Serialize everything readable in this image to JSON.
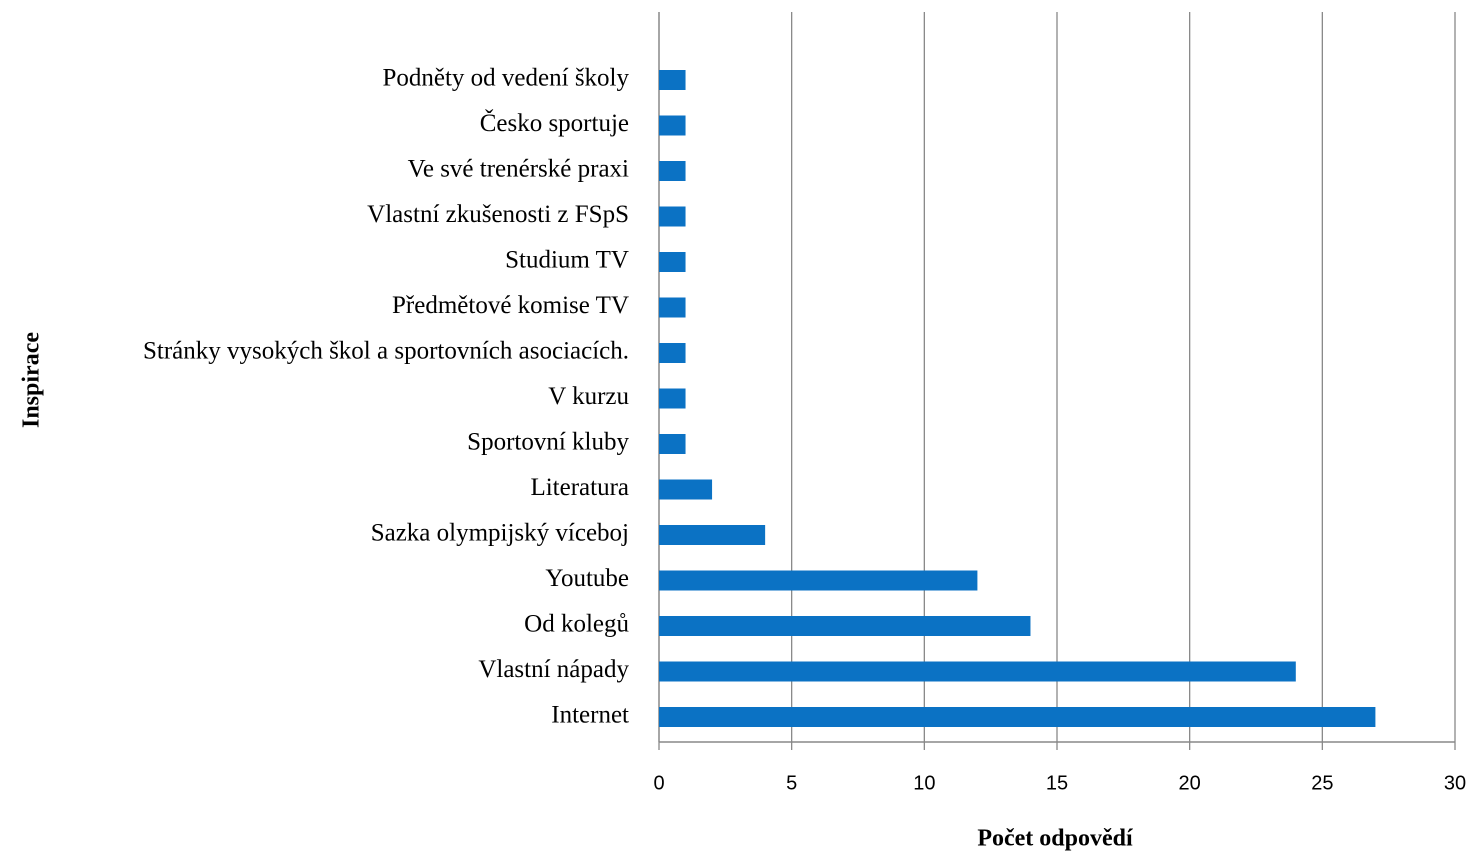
{
  "chart_data": {
    "type": "hbar",
    "categories": [
      "Podněty od vedení školy",
      "Česko sportuje",
      "Ve své trenérské praxi",
      "Vlastní zkušenosti z FSpS",
      "Studium TV",
      "Předmětové komise TV",
      "Stránky vysokých škol a sportovních asociacích.",
      "V kurzu",
      "Sportovní kluby",
      "Literatura",
      "Sazka olympijský víceboj",
      "Youtube",
      "Od kolegů",
      "Vlastní nápady",
      "Internet"
    ],
    "values": [
      1,
      1,
      1,
      1,
      1,
      1,
      1,
      1,
      1,
      2,
      4,
      12,
      14,
      24,
      27
    ],
    "color": "#0b72c4",
    "xlabel": "Počet odpovědí",
    "ylabel": "Inspirace",
    "xlim": [
      0,
      30
    ],
    "xticks": [
      0,
      5,
      10,
      15,
      20,
      25,
      30
    ],
    "grid": true
  }
}
